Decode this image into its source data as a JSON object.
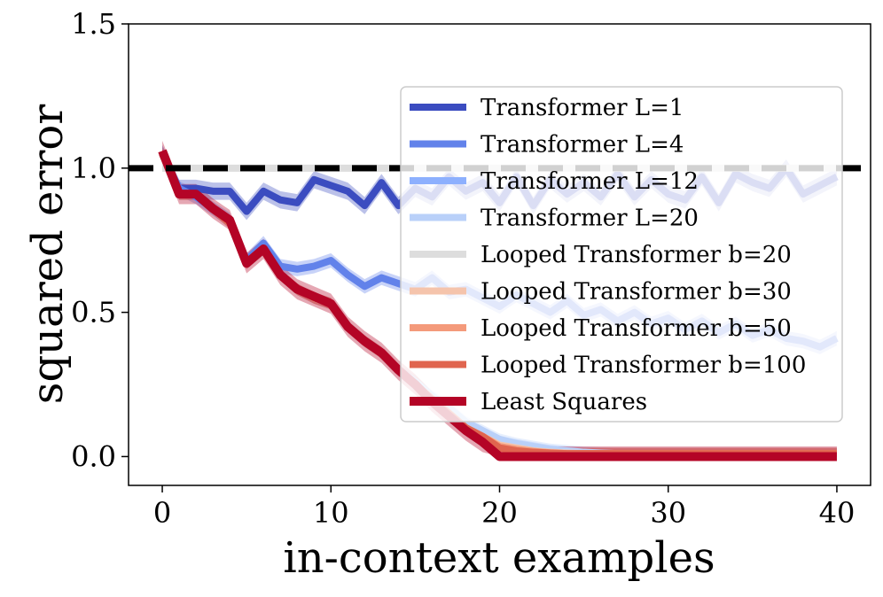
{
  "chart_data": {
    "type": "line",
    "title": "",
    "xlabel": "in-context examples",
    "ylabel": "squared error",
    "xlim": [
      -2,
      42
    ],
    "ylim": [
      -0.1,
      1.5
    ],
    "xticks": [
      0,
      10,
      20,
      30,
      40
    ],
    "yticks": [
      0.0,
      0.5,
      1.0,
      1.5
    ],
    "xtick_labels": [
      "0",
      "10",
      "20",
      "30",
      "40"
    ],
    "ytick_labels": [
      "0.0",
      "0.5",
      "1.0",
      "1.5"
    ],
    "grid": false,
    "legend_position": "right",
    "x": [
      0,
      1,
      2,
      3,
      4,
      5,
      6,
      7,
      8,
      9,
      10,
      11,
      12,
      13,
      14,
      15,
      16,
      17,
      18,
      19,
      20,
      21,
      22,
      23,
      24,
      25,
      26,
      27,
      28,
      29,
      30,
      31,
      32,
      33,
      34,
      35,
      36,
      37,
      38,
      39,
      40
    ],
    "series": [
      {
        "name": "Transformer L=1",
        "color": "#3b4cc0",
        "width": 8,
        "alpha": 1,
        "band": 0.03,
        "values": [
          1.05,
          0.93,
          0.93,
          0.92,
          0.92,
          0.85,
          0.92,
          0.89,
          0.88,
          0.96,
          0.94,
          0.92,
          0.87,
          0.95,
          0.87,
          0.93,
          0.9,
          0.97,
          0.92,
          0.95,
          0.88,
          0.97,
          0.87,
          0.96,
          0.91,
          0.95,
          0.9,
          0.98,
          0.9,
          0.96,
          0.91,
          0.89,
          0.97,
          0.88,
          0.98,
          0.95,
          0.93,
          1.0,
          0.91,
          0.94,
          0.97
        ]
      },
      {
        "name": "Transformer L=4",
        "color": "#6282ea",
        "width": 8,
        "alpha": 1,
        "band": 0.025,
        "values": [
          1.05,
          0.93,
          0.9,
          0.86,
          0.82,
          0.68,
          0.74,
          0.66,
          0.65,
          0.66,
          0.68,
          0.63,
          0.59,
          0.62,
          0.6,
          0.58,
          0.62,
          0.57,
          0.58,
          0.55,
          0.52,
          0.56,
          0.53,
          0.5,
          0.54,
          0.49,
          0.51,
          0.47,
          0.5,
          0.46,
          0.48,
          0.44,
          0.47,
          0.43,
          0.46,
          0.42,
          0.44,
          0.41,
          0.4,
          0.38,
          0.41
        ]
      },
      {
        "name": "Transformer L=12",
        "color": "#8db0fe",
        "width": 8,
        "alpha": 1,
        "band": 0.02,
        "values": [
          1.05,
          0.91,
          0.91,
          0.86,
          0.81,
          0.67,
          0.72,
          0.63,
          0.58,
          0.55,
          0.53,
          0.45,
          0.4,
          0.36,
          0.3,
          0.25,
          0.2,
          0.16,
          0.11,
          0.08,
          0.05,
          0.04,
          0.03,
          0.02,
          0.015,
          0.012,
          0.01,
          0.01,
          0.01,
          0.01,
          0.01,
          0.01,
          0.01,
          0.01,
          0.01,
          0.01,
          0.01,
          0.01,
          0.01,
          0.01,
          0.01
        ]
      },
      {
        "name": "Transformer L=20",
        "color": "#b9d0f9",
        "width": 8,
        "alpha": 1,
        "band": 0.02,
        "values": [
          1.05,
          0.91,
          0.91,
          0.86,
          0.81,
          0.67,
          0.72,
          0.63,
          0.58,
          0.55,
          0.53,
          0.45,
          0.4,
          0.36,
          0.3,
          0.26,
          0.21,
          0.17,
          0.12,
          0.09,
          0.06,
          0.045,
          0.035,
          0.025,
          0.02,
          0.015,
          0.012,
          0.01,
          0.01,
          0.01,
          0.01,
          0.01,
          0.01,
          0.01,
          0.01,
          0.01,
          0.01,
          0.01,
          0.01,
          0.01,
          0.01
        ]
      },
      {
        "name": "Looped Transformer b=20",
        "color": "#dddddd",
        "width": 8,
        "alpha": 1,
        "band": 0,
        "values": [
          1.0,
          1.0,
          1.0,
          1.0,
          1.0,
          1.0,
          1.0,
          1.0,
          1.0,
          1.0,
          1.0,
          1.0,
          1.0,
          1.0,
          1.0,
          1.0,
          1.0,
          1.0,
          1.0,
          1.0,
          1.0,
          1.0,
          1.0,
          1.0,
          1.0,
          1.0,
          1.0,
          1.0,
          1.0,
          1.0,
          1.0,
          1.0,
          1.0,
          1.0,
          1.0,
          1.0,
          1.0,
          1.0,
          1.0,
          1.0,
          1.0
        ]
      },
      {
        "name": "Looped Transformer b=30",
        "color": "#f5c4ac",
        "width": 8,
        "alpha": 1,
        "band": 0.02,
        "values": [
          1.05,
          0.91,
          0.91,
          0.86,
          0.81,
          0.67,
          0.72,
          0.63,
          0.58,
          0.55,
          0.53,
          0.45,
          0.4,
          0.36,
          0.3,
          0.25,
          0.2,
          0.15,
          0.1,
          0.07,
          0.04,
          0.03,
          0.02,
          0.015,
          0.012,
          0.01,
          0.01,
          0.01,
          0.01,
          0.01,
          0.01,
          0.01,
          0.01,
          0.01,
          0.01,
          0.01,
          0.01,
          0.01,
          0.01,
          0.01,
          0.01
        ]
      },
      {
        "name": "Looped Transformer b=50",
        "color": "#f49a7b",
        "width": 8,
        "alpha": 1,
        "band": 0.02,
        "values": [
          1.05,
          0.91,
          0.91,
          0.86,
          0.81,
          0.67,
          0.72,
          0.63,
          0.58,
          0.55,
          0.53,
          0.45,
          0.4,
          0.36,
          0.3,
          0.25,
          0.2,
          0.15,
          0.1,
          0.07,
          0.035,
          0.025,
          0.018,
          0.013,
          0.01,
          0.01,
          0.01,
          0.01,
          0.01,
          0.01,
          0.01,
          0.01,
          0.01,
          0.01,
          0.01,
          0.01,
          0.01,
          0.01,
          0.01,
          0.01,
          0.01
        ]
      },
      {
        "name": "Looped Transformer b=100",
        "color": "#e0654f",
        "width": 8,
        "alpha": 1,
        "band": 0.02,
        "values": [
          1.05,
          0.91,
          0.91,
          0.86,
          0.81,
          0.67,
          0.72,
          0.63,
          0.58,
          0.55,
          0.53,
          0.45,
          0.4,
          0.36,
          0.3,
          0.25,
          0.2,
          0.15,
          0.1,
          0.07,
          0.03,
          0.02,
          0.015,
          0.012,
          0.01,
          0.01,
          0.01,
          0.01,
          0.01,
          0.01,
          0.01,
          0.01,
          0.01,
          0.01,
          0.01,
          0.01,
          0.01,
          0.01,
          0.01,
          0.01,
          0.01
        ]
      },
      {
        "name": "Least Squares",
        "color": "#b40426",
        "width": 10,
        "alpha": 1,
        "band": 0.035,
        "values": [
          1.06,
          0.91,
          0.91,
          0.86,
          0.82,
          0.67,
          0.72,
          0.63,
          0.58,
          0.555,
          0.53,
          0.45,
          0.4,
          0.36,
          0.3,
          0.25,
          0.19,
          0.14,
          0.09,
          0.05,
          0.0,
          0.0,
          0.0,
          0.0,
          0.0,
          0.0,
          0.0,
          0.0,
          0.0,
          0.0,
          0.0,
          0.0,
          0.0,
          0.0,
          0.0,
          0.0,
          0.0,
          0.0,
          0.0,
          0.0,
          0.0
        ]
      }
    ],
    "reference_line": {
      "y": 1.0,
      "color": "#000000",
      "style": "dashed"
    }
  }
}
